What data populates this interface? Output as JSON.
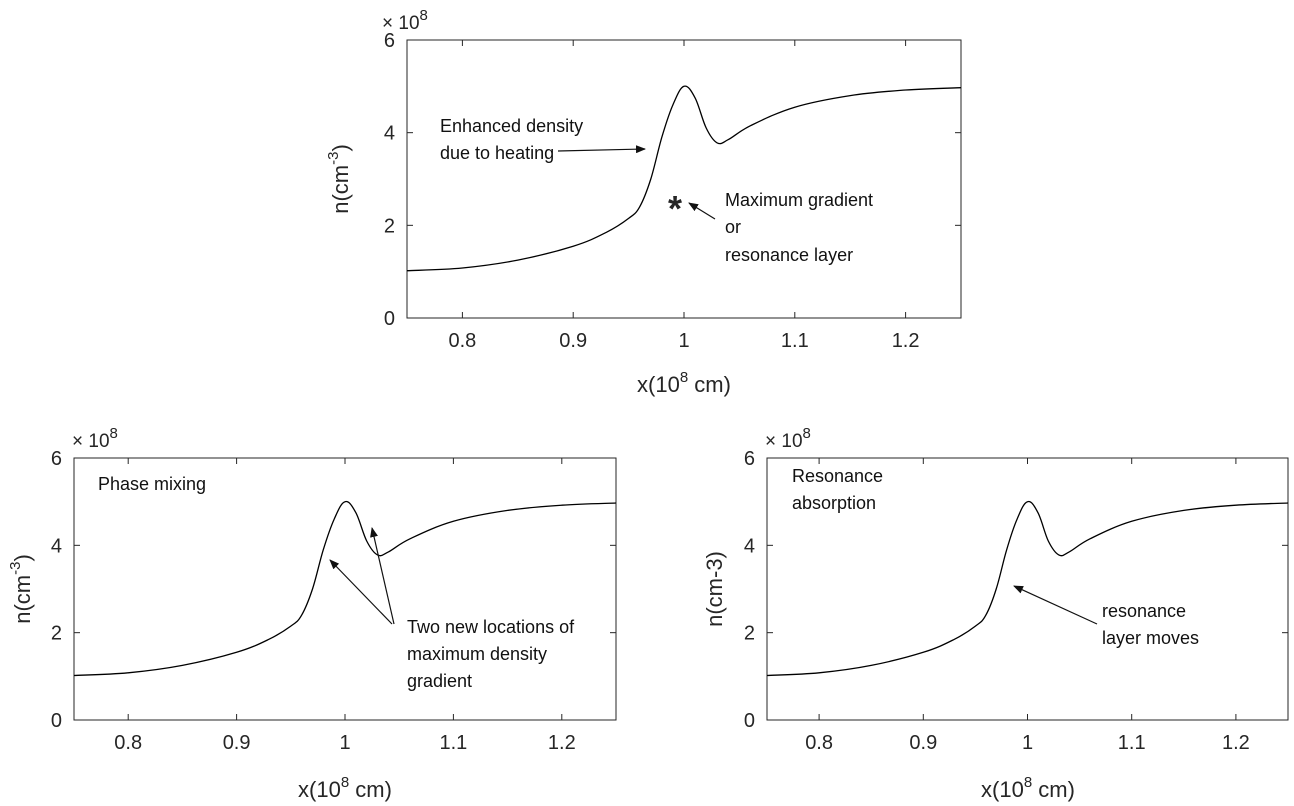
{
  "chart_data": [
    {
      "type": "line",
      "xlabel": "x(10^8 cm)",
      "ylabel": "n(cm^-3)",
      "y_multiplier": "× 10^8",
      "xlim": [
        0.75,
        1.25
      ],
      "ylim": [
        0,
        6
      ],
      "xticks": [
        "0.8",
        "0.9",
        "1",
        "1.1",
        "1.2"
      ],
      "yticks": [
        "0",
        "2",
        "4",
        "6"
      ],
      "series": [
        {
          "x": [
            0.75,
            0.8,
            0.85,
            0.9,
            0.93,
            0.95,
            0.96,
            0.97,
            0.98,
            0.99,
            1.0,
            1.01,
            1.02,
            1.03,
            1.04,
            1.06,
            1.1,
            1.15,
            1.2,
            1.25
          ],
          "values": [
            1.02,
            1.08,
            1.25,
            1.55,
            1.85,
            2.15,
            2.4,
            3.0,
            3.9,
            4.6,
            5.0,
            4.75,
            4.1,
            3.78,
            3.85,
            4.15,
            4.55,
            4.8,
            4.92,
            4.97
          ]
        }
      ],
      "annotations": [
        {
          "text": "Enhanced density due to heating",
          "lines": [
            "Enhanced density",
            "due to heating"
          ]
        },
        {
          "text": "Maximum gradient or resonance layer",
          "lines": [
            "Maximum gradient",
            "or",
            "resonance layer"
          ],
          "marker": "*",
          "marker_at": [
            1.003,
            2.45
          ]
        }
      ]
    },
    {
      "type": "line",
      "xlabel": "x(10^8 cm)",
      "ylabel": "n(cm^-3)",
      "y_multiplier": "× 10^8",
      "xlim": [
        0.75,
        1.25
      ],
      "ylim": [
        0,
        6
      ],
      "xticks": [
        "0.8",
        "0.9",
        "1",
        "1.1",
        "1.2"
      ],
      "yticks": [
        "0",
        "2",
        "4",
        "6"
      ],
      "series": [
        {
          "x": [
            0.75,
            0.8,
            0.85,
            0.9,
            0.93,
            0.95,
            0.96,
            0.97,
            0.98,
            0.99,
            1.0,
            1.01,
            1.02,
            1.03,
            1.04,
            1.06,
            1.1,
            1.15,
            1.2,
            1.25
          ],
          "values": [
            1.02,
            1.08,
            1.25,
            1.55,
            1.85,
            2.15,
            2.4,
            3.0,
            3.9,
            4.6,
            5.0,
            4.75,
            4.1,
            3.78,
            3.85,
            4.15,
            4.55,
            4.8,
            4.92,
            4.97
          ]
        }
      ],
      "annotations": [
        {
          "text": "Phase mixing",
          "lines": [
            "Phase mixing"
          ]
        },
        {
          "text": "Two new locations of maximum density gradient",
          "lines": [
            "Two new locations of",
            "maximum density",
            "gradient"
          ]
        }
      ]
    },
    {
      "type": "line",
      "xlabel": "x(10^8 cm)",
      "ylabel": "n(cm-3)",
      "y_multiplier": "× 10^8",
      "xlim": [
        0.75,
        1.25
      ],
      "ylim": [
        0,
        6
      ],
      "xticks": [
        "0.8",
        "0.9",
        "1",
        "1.1",
        "1.2"
      ],
      "yticks": [
        "0",
        "2",
        "4",
        "6"
      ],
      "series": [
        {
          "x": [
            0.75,
            0.8,
            0.85,
            0.9,
            0.93,
            0.95,
            0.96,
            0.97,
            0.98,
            0.99,
            1.0,
            1.01,
            1.02,
            1.03,
            1.04,
            1.06,
            1.1,
            1.15,
            1.2,
            1.25
          ],
          "values": [
            1.02,
            1.08,
            1.25,
            1.55,
            1.85,
            2.15,
            2.4,
            3.0,
            3.9,
            4.6,
            5.0,
            4.75,
            4.1,
            3.78,
            3.85,
            4.15,
            4.55,
            4.8,
            4.92,
            4.97
          ]
        }
      ],
      "annotations": [
        {
          "text": "Resonance absorption",
          "lines": [
            "Resonance",
            "absorption"
          ]
        },
        {
          "text": "resonance layer moves",
          "lines": [
            "resonance",
            "layer moves"
          ]
        }
      ]
    }
  ],
  "text": {
    "xlabel_main": "x(10",
    "xlabel_exp": "8",
    "xlabel_unit": " cm)",
    "ylabel_main": "n(cm",
    "ylabel_exp": "-3",
    "ylabel_close": ")",
    "ylabel_plain": "n(cm-3)",
    "mult_base": "× 10",
    "mult_exp": "8",
    "star": "*",
    "top_ann1_l1": "Enhanced density",
    "top_ann1_l2": "due to heating",
    "top_ann2_l1": "Maximum gradient",
    "top_ann2_l2": "or",
    "top_ann2_l3": "resonance layer",
    "bl_ann1": "Phase mixing",
    "bl_ann2_l1": "Two new locations of",
    "bl_ann2_l2": "maximum density",
    "bl_ann2_l3": "gradient",
    "br_ann1_l1": "Resonance",
    "br_ann1_l2": "absorption",
    "br_ann2_l1": "resonance",
    "br_ann2_l2": "layer moves"
  }
}
